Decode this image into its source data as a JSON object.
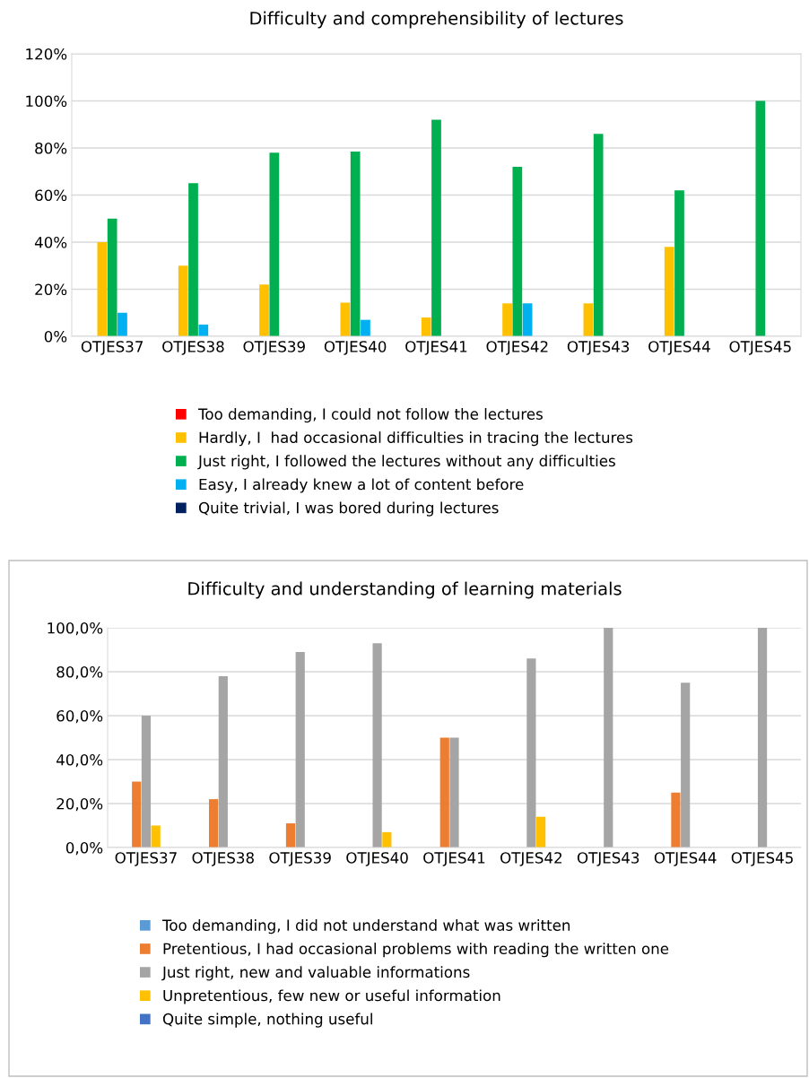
{
  "chart_data": [
    {
      "type": "bar",
      "title": "Difficulty and comprehensibility of lectures",
      "categories": [
        "OTJES37",
        "OTJES38",
        "OTJES39",
        "OTJES40",
        "OTJES41",
        "OTJES42",
        "OTJES43",
        "OTJES44",
        "OTJES45"
      ],
      "series": [
        {
          "name": "Too demanding, I could not follow the lectures",
          "color": "#ff0000",
          "values": [
            0,
            0,
            0,
            0,
            0,
            0,
            0,
            0,
            0
          ]
        },
        {
          "name": "Hardly, I  had occasional difficulties in tracing the lectures",
          "color": "#ffc000",
          "values": [
            40,
            30,
            22,
            14.3,
            8,
            14,
            14,
            38,
            0
          ]
        },
        {
          "name": "Just right, I followed the lectures without any difficulties",
          "color": "#00b050",
          "values": [
            50,
            65,
            78,
            78.5,
            92,
            72,
            86,
            62,
            100
          ]
        },
        {
          "name": "Easy, I already knew a lot of content before",
          "color": "#00b0f0",
          "values": [
            10,
            5,
            0,
            7,
            0,
            14,
            0,
            0,
            0
          ]
        },
        {
          "name": "Quite trivial, I was bored during lectures",
          "color": "#002060",
          "values": [
            0,
            0,
            0,
            0,
            0,
            0,
            0,
            0,
            0
          ]
        }
      ],
      "ylim": [
        0,
        120
      ],
      "yticks": [
        {
          "value": 0,
          "label": "0%"
        },
        {
          "value": 20,
          "label": "20%"
        },
        {
          "value": 40,
          "label": "40%"
        },
        {
          "value": 60,
          "label": "60%"
        },
        {
          "value": 80,
          "label": "80%"
        },
        {
          "value": 100,
          "label": "100%"
        },
        {
          "value": 120,
          "label": "120%"
        }
      ],
      "grid": "y",
      "legend": "bottom"
    },
    {
      "type": "bar",
      "title": "Difficulty and understanding of learning materials",
      "categories": [
        "OTJES37",
        "OTJES38",
        "OTJES39",
        "OTJES40",
        "OTJES41",
        "OTJES42",
        "OTJES43",
        "OTJES44",
        "OTJES45"
      ],
      "series": [
        {
          "name": "Too demanding, I did not understand what was written",
          "color": "#5b9bd5",
          "values": [
            0,
            0,
            0,
            0,
            0,
            0,
            0,
            0,
            0
          ]
        },
        {
          "name": "Pretentious, I had occasional problems with reading the written one",
          "color": "#ed7d31",
          "values": [
            30,
            22,
            11,
            0,
            50,
            0,
            0,
            25,
            0
          ]
        },
        {
          "name": "Just right, new and valuable informations",
          "color": "#a5a5a5",
          "values": [
            60,
            78,
            89,
            93,
            50,
            86,
            100,
            75,
            100
          ]
        },
        {
          "name": "Unpretentious, few new or useful information",
          "color": "#ffc000",
          "values": [
            10,
            0,
            0,
            7,
            0,
            14,
            0,
            0,
            0
          ]
        },
        {
          "name": "Quite simple, nothing useful",
          "color": "#4472c4",
          "values": [
            0,
            0,
            0,
            0,
            0,
            0,
            0,
            0,
            0
          ]
        }
      ],
      "ylim": [
        0,
        100
      ],
      "yticks": [
        {
          "value": 0,
          "label": "0,0%"
        },
        {
          "value": 20,
          "label": "20,0%"
        },
        {
          "value": 40,
          "label": "40,0%"
        },
        {
          "value": 60,
          "label": "60,0%"
        },
        {
          "value": 80,
          "label": "80,0%"
        },
        {
          "value": 100,
          "label": "100,0%"
        }
      ],
      "grid": "y",
      "legend": "bottom"
    }
  ]
}
